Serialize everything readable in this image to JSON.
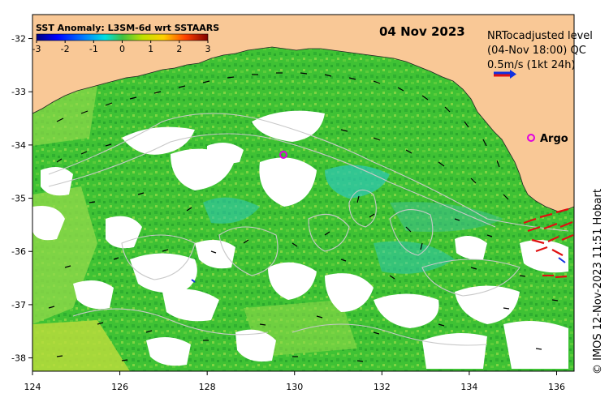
{
  "map": {
    "colorbar_title": "SST Anomaly: L3SM-6d wrt SSTAARS",
    "colorbar_ticks": [
      "-3",
      "-2",
      "-1",
      "0",
      "1",
      "2",
      "3"
    ],
    "date": "04 Nov 2023",
    "legend_line1": "NRTocadjusted level",
    "legend_line2": "(04-Nov 18:00) QC",
    "legend_vector": "0.5m/s (1kt 24h)",
    "argo_label": "Argo",
    "credit": "© IMOS 12-Nov-2023 11:51 Hobart",
    "lon_ticks": [
      "124",
      "126",
      "128",
      "130",
      "132",
      "134",
      "136"
    ],
    "lat_ticks": [
      "-32",
      "-33",
      "-34",
      "-35",
      "-36",
      "-37",
      "-38"
    ],
    "colors": {
      "land": "#f9c896",
      "ocean_main": "#3fc234",
      "ocean_light": "#8fd84a",
      "ocean_dark": "#22a82c",
      "ocean_cyan": "#2fc7b0",
      "ocean_warm": "#c8e03a",
      "argo": "#e000e0",
      "vector_red": "#e01010",
      "vector_blue": "#1030e0"
    }
  }
}
